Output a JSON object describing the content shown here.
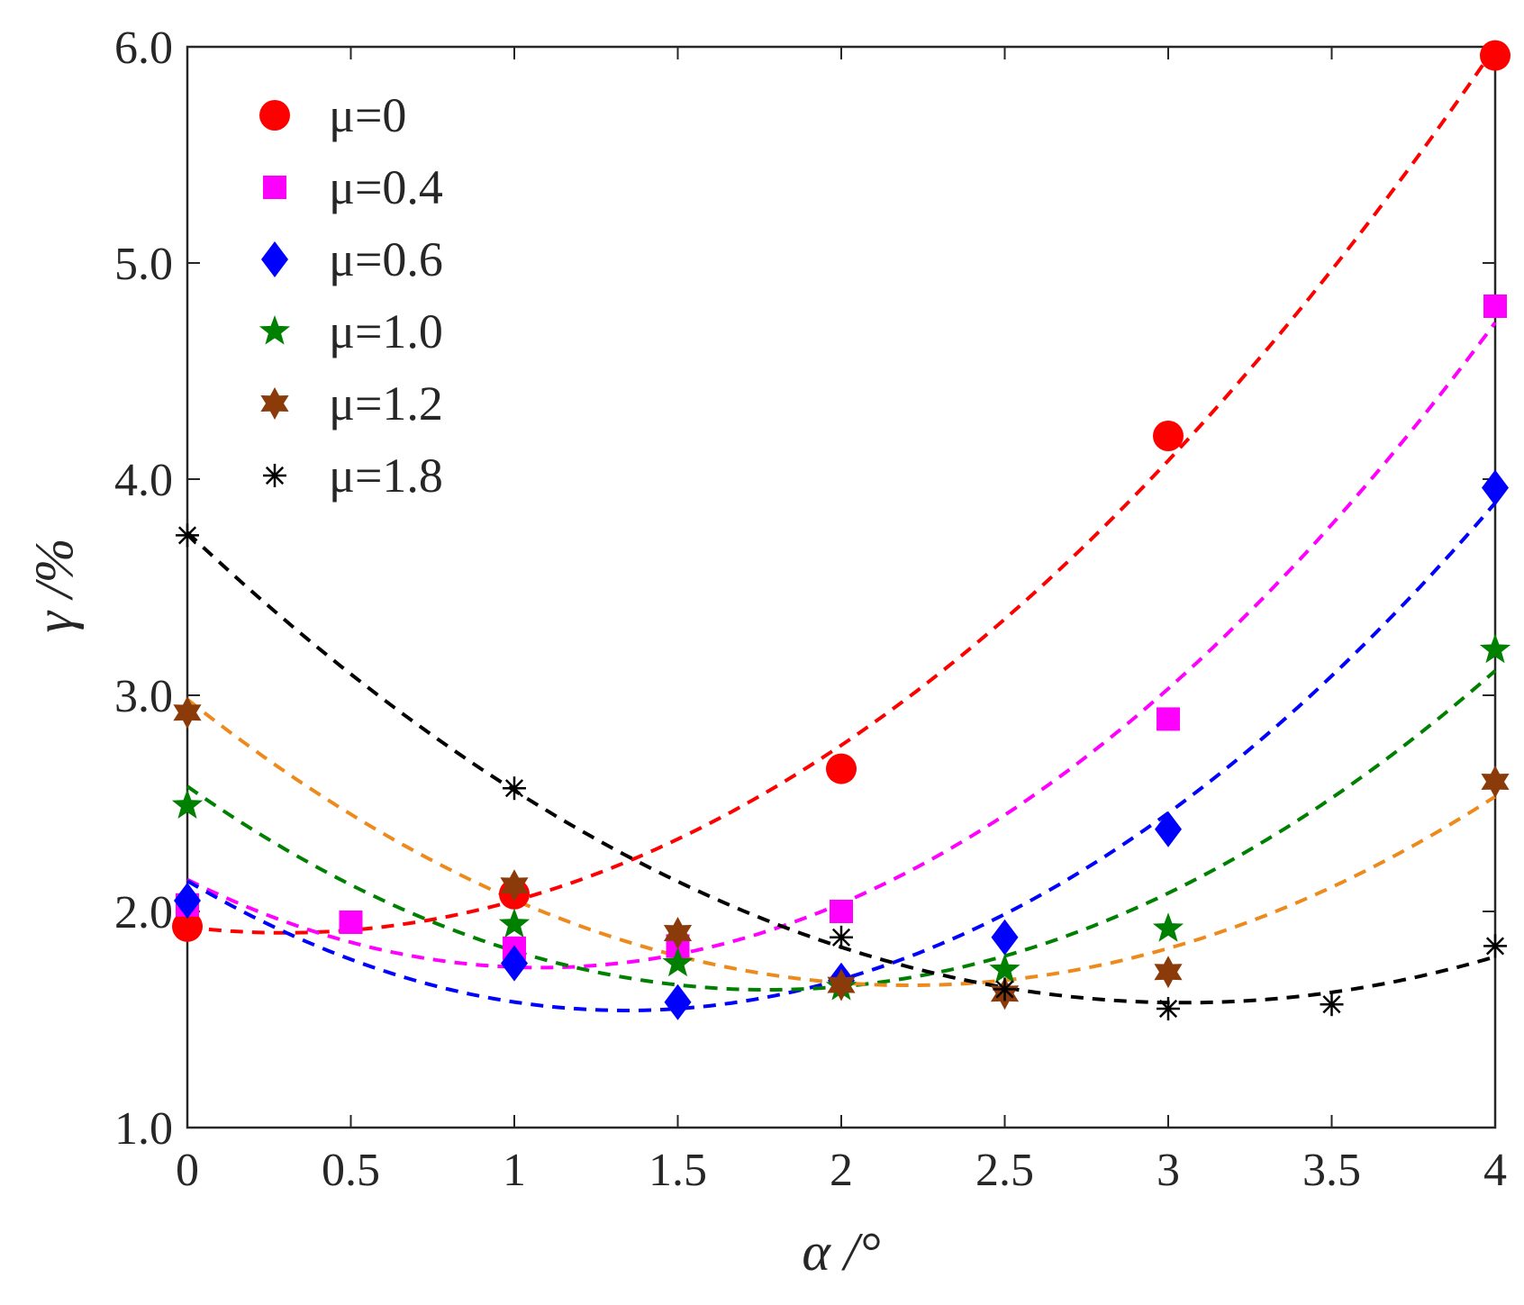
{
  "chart_data": {
    "type": "scatter",
    "title": "",
    "xlabel": "α /°",
    "ylabel": "γ /%",
    "xlim": [
      0,
      4
    ],
    "ylim": [
      1.0,
      6.0
    ],
    "xticks": [
      0,
      0.5,
      1,
      1.5,
      2,
      2.5,
      3,
      3.5,
      4
    ],
    "xtick_labels": [
      "0",
      "0.5",
      "1",
      "1.5",
      "2",
      "2.5",
      "3",
      "3.5",
      "4"
    ],
    "yticks": [
      1.0,
      2.0,
      3.0,
      4.0,
      5.0,
      6.0
    ],
    "ytick_labels": [
      "1.0",
      "2.0",
      "3.0",
      "4.0",
      "5.0",
      "6.0"
    ],
    "grid": false,
    "legend_position": "top-left",
    "fit_lines": "dashed quadratic fits",
    "series": [
      {
        "name": "μ=0",
        "marker": "circle",
        "color": "#ff0000",
        "fit_color": "#ff0000",
        "x": [
          0,
          1,
          2,
          3,
          4
        ],
        "y": [
          1.93,
          2.08,
          2.66,
          4.2,
          5.96
        ],
        "fit_range": [
          0,
          4
        ]
      },
      {
        "name": "μ=0.4",
        "marker": "square",
        "color": "#ff00ff",
        "fit_color": "#ff00ff",
        "x": [
          0,
          0.5,
          1,
          1.5,
          2,
          3,
          4
        ],
        "y": [
          2.03,
          1.95,
          1.83,
          1.84,
          2.0,
          2.89,
          4.8
        ],
        "fit_range": [
          0,
          4
        ]
      },
      {
        "name": "μ=0.6",
        "marker": "diamond",
        "color": "#0000ff",
        "fit_color": "#0000ff",
        "x": [
          0,
          1,
          1.5,
          2,
          2.5,
          3,
          4
        ],
        "y": [
          2.05,
          1.76,
          1.58,
          1.68,
          1.88,
          2.38,
          3.96
        ],
        "fit_range": [
          0,
          4
        ]
      },
      {
        "name": "μ=1.0",
        "marker": "star5",
        "color": "#008000",
        "fit_color": "#008000",
        "x": [
          0,
          1,
          1.5,
          2,
          2.5,
          3,
          4
        ],
        "y": [
          2.49,
          1.94,
          1.76,
          1.65,
          1.73,
          1.92,
          3.21
        ],
        "fit_range": [
          0,
          4
        ]
      },
      {
        "name": "μ=1.2",
        "marker": "star6",
        "color": "#8b3a0a",
        "fit_color": "#ed8a1e",
        "x": [
          0,
          1,
          1.5,
          2,
          2.5,
          3,
          4
        ],
        "y": [
          2.92,
          2.12,
          1.9,
          1.66,
          1.62,
          1.72,
          2.6
        ],
        "fit_range": [
          0,
          4
        ]
      },
      {
        "name": "μ=1.8",
        "marker": "asterisk",
        "color": "#000000",
        "fit_color": "#000000",
        "x": [
          0,
          1,
          2,
          2.5,
          3,
          3.5,
          4
        ],
        "y": [
          3.74,
          2.57,
          1.88,
          1.64,
          1.55,
          1.57,
          1.84
        ],
        "fit_range": [
          0,
          4
        ]
      }
    ]
  }
}
